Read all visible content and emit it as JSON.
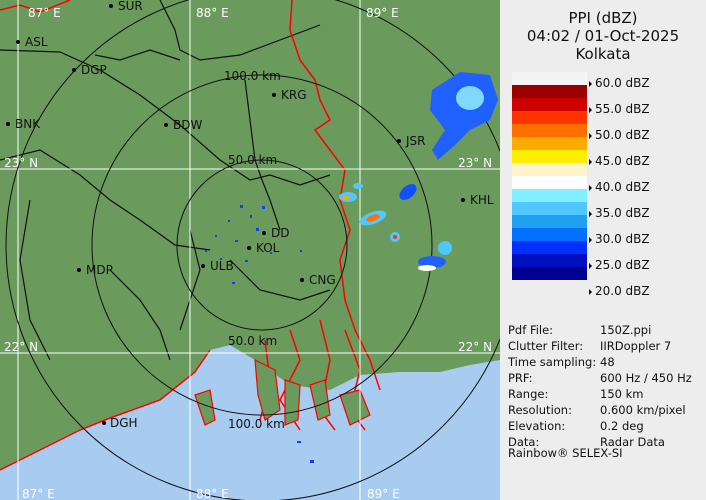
{
  "header": {
    "product": "PPI (dBZ)",
    "datetime": "04:02 / 01-Oct-2025",
    "station": "Kolkata"
  },
  "legend": {
    "labels": [
      "60.0 dBZ",
      "55.0 dBZ",
      "50.0 dBZ",
      "45.0 dBZ",
      "40.0 dBZ",
      "35.0 dBZ",
      "30.0 dBZ",
      "25.0 dBZ",
      "20.0 dBZ"
    ],
    "colors": [
      "#f4f4f4",
      "#9a0000",
      "#cc0000",
      "#ff3300",
      "#ff7000",
      "#ffaa00",
      "#ffee00",
      "#fff5c8",
      "#ffffff",
      "#80f0ff",
      "#50c8ff",
      "#20a0f0",
      "#0070ff",
      "#0030ff",
      "#0010c0",
      "#000090"
    ]
  },
  "info": [
    {
      "key": "Pdf File:",
      "value": "150Z.ppi"
    },
    {
      "key": "Clutter Filter:",
      "value": "IIRDoppler 7"
    },
    {
      "key": "Time sampling:",
      "value": "48"
    },
    {
      "key": "PRF:",
      "value": "600 Hz / 450 Hz"
    },
    {
      "key": "Range:",
      "value": "150 km"
    },
    {
      "key": "Resolution:",
      "value": "0.600 km/pixel"
    },
    {
      "key": "Elevation:",
      "value": "0.2 deg"
    },
    {
      "key": "Data:",
      "value": "Radar Data"
    }
  ],
  "brand": "Rainbow® SELEX-SI",
  "map": {
    "longitudes": [
      "87° E",
      "88° E",
      "89° E"
    ],
    "latitudes": [
      "23° N",
      "22° N"
    ],
    "rings": [
      "50.0 km",
      "100.0 km",
      "50.0 km",
      "100.0 km"
    ],
    "cities": [
      "ASL",
      "DGP",
      "SUR",
      "KRG",
      "BDW",
      "BNK",
      "JSR",
      "KHL",
      "DD",
      "KOL",
      "ULB",
      "MDP",
      "CNG",
      "DGH"
    ],
    "colors": {
      "land": "#6a9a5c",
      "sea": "#a8ccf0",
      "border": "#ff0000"
    }
  }
}
